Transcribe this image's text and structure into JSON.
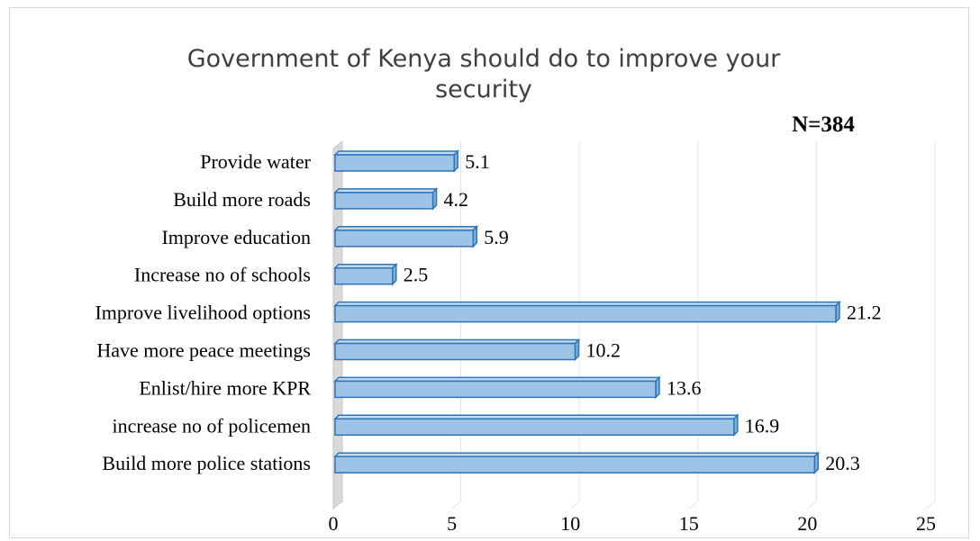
{
  "chart_data": {
    "type": "bar",
    "orientation": "horizontal",
    "title": "Government of Kenya should do to improve your security",
    "title_lines": [
      "Government of Kenya should do to improve your",
      "security"
    ],
    "annotation": "N=384",
    "categories": [
      "Provide water",
      "Build more roads",
      "Improve education",
      "Increase no of schools",
      "Improve livelihood options",
      "Have more peace meetings",
      "Enlist/hire more KPR",
      "increase no of policemen",
      "Build more police stations"
    ],
    "values": [
      5.1,
      4.2,
      5.9,
      2.5,
      21.2,
      10.2,
      13.6,
      16.9,
      20.3
    ],
    "xlim": [
      0,
      25
    ],
    "xticks": [
      "0",
      "5",
      "10",
      "15",
      "20",
      "25"
    ],
    "xlabel": "",
    "ylabel": "",
    "grid": true,
    "legend": "none",
    "bar_color": "#9dc3e6",
    "bar_edge_color": "#2e75b6",
    "bar_top_color": "#c5dcf2",
    "wall_color": "#d9d9d9",
    "gridline_color": "#e4e4e4"
  }
}
